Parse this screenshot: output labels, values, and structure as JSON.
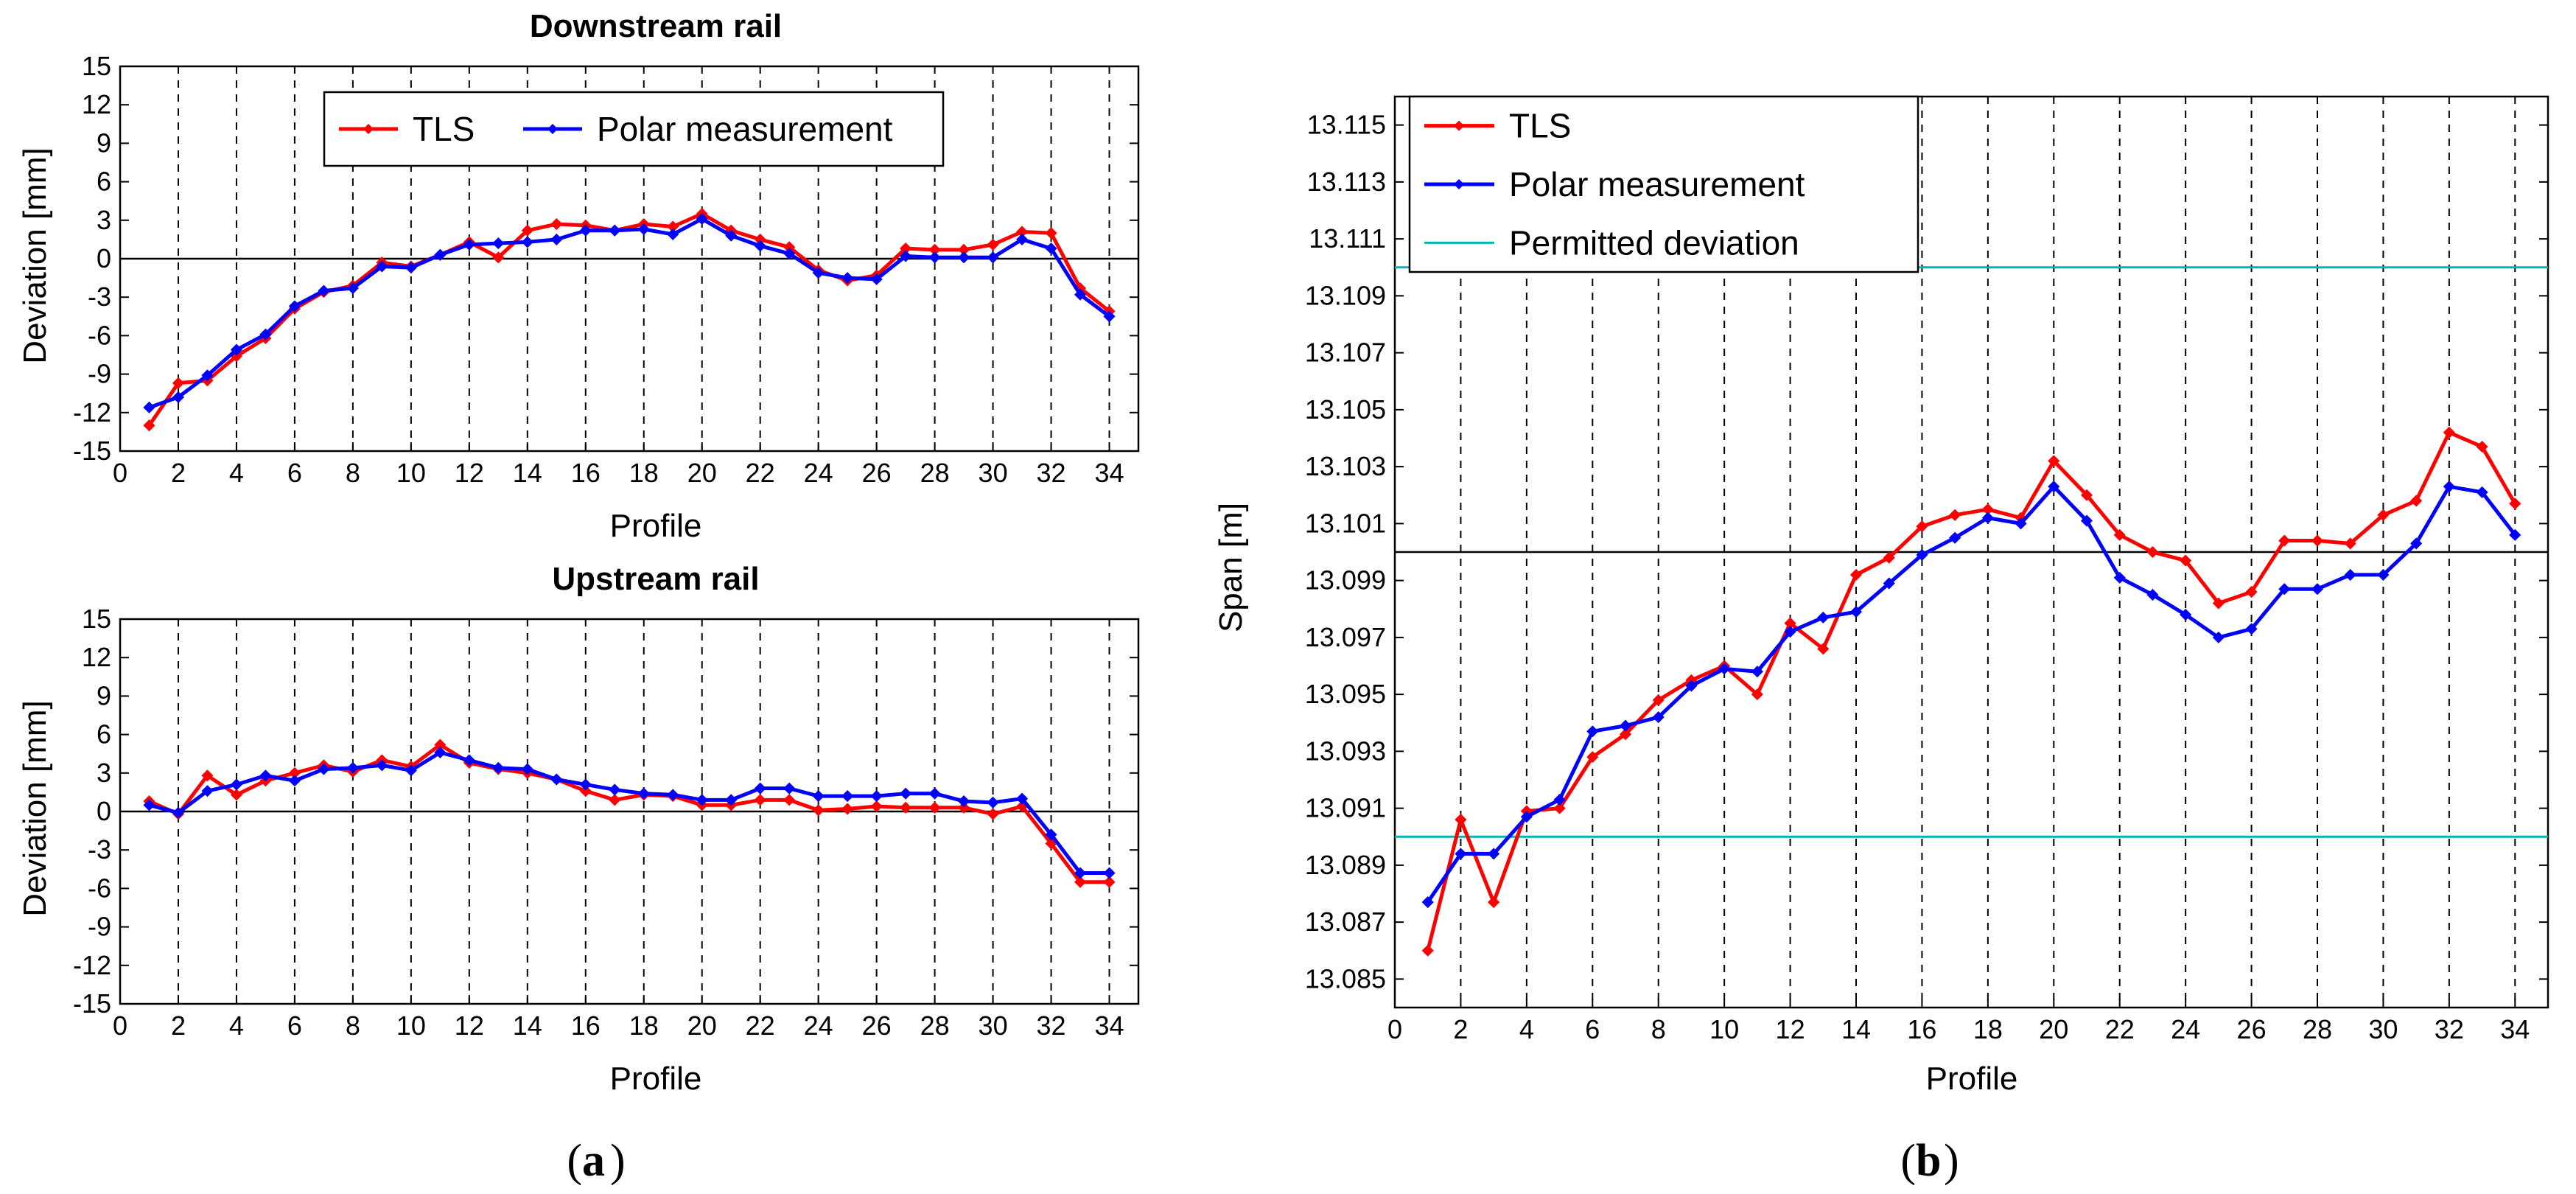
{
  "colors": {
    "tls": "#ff0000",
    "polar": "#0000ff",
    "permitted": "#00b5b5",
    "zero": "#000000",
    "grid": "#000000"
  },
  "panel_labels": {
    "a": "a",
    "b": "b"
  },
  "chart_data": [
    {
      "type": "line",
      "id": "downstream",
      "title": "Downstream rail",
      "xlabel": "Profile",
      "ylabel": "Deviation [mm]",
      "xlim": [
        0,
        35
      ],
      "ylim": [
        -15,
        15
      ],
      "xticks": [
        0,
        2,
        4,
        6,
        8,
        10,
        12,
        14,
        16,
        18,
        20,
        22,
        24,
        26,
        28,
        30,
        32,
        34
      ],
      "yticks": [
        -15,
        -12,
        -9,
        -6,
        -3,
        0,
        3,
        6,
        9,
        12,
        15
      ],
      "legend": [
        "TLS",
        "Polar measurement"
      ],
      "series": [
        {
          "name": "TLS",
          "color": "#ff0000",
          "x": [
            1,
            2,
            3,
            4,
            5,
            6,
            7,
            8,
            9,
            10,
            11,
            12,
            13,
            14,
            15,
            16,
            17,
            18,
            19,
            20,
            21,
            22,
            23,
            24,
            25,
            26,
            27,
            28,
            29,
            30,
            31,
            32,
            33,
            34
          ],
          "y": [
            -13,
            -9.7,
            -9.5,
            -7.6,
            -6.2,
            -3.9,
            -2.6,
            -2.1,
            -0.3,
            -0.6,
            0.3,
            1.3,
            0.1,
            2.2,
            2.7,
            2.6,
            2.2,
            2.7,
            2.5,
            3.5,
            2.2,
            1.5,
            0.9,
            -0.9,
            -1.7,
            -1.3,
            0.8,
            0.7,
            0.7,
            1.1,
            2.1,
            2.0,
            -2.3,
            -4.1
          ]
        },
        {
          "name": "Polar measurement",
          "color": "#0000ff",
          "x": [
            1,
            2,
            3,
            4,
            5,
            6,
            7,
            8,
            9,
            10,
            11,
            12,
            13,
            14,
            15,
            16,
            17,
            18,
            19,
            20,
            21,
            22,
            23,
            24,
            25,
            26,
            27,
            28,
            29,
            30,
            31,
            32,
            33,
            34
          ],
          "y": [
            -11.6,
            -10.8,
            -9.1,
            -7.1,
            -5.9,
            -3.7,
            -2.5,
            -2.3,
            -0.6,
            -0.7,
            0.3,
            1.1,
            1.2,
            1.3,
            1.5,
            2.2,
            2.2,
            2.3,
            1.9,
            3.1,
            1.8,
            1.0,
            0.4,
            -1.1,
            -1.5,
            -1.6,
            0.2,
            0.1,
            0.1,
            0.1,
            1.5,
            0.8,
            -2.8,
            -4.5
          ]
        }
      ]
    },
    {
      "type": "line",
      "id": "upstream",
      "title": "Upstream rail",
      "xlabel": "Profile",
      "ylabel": "Deviation [mm]",
      "xlim": [
        0,
        35
      ],
      "ylim": [
        -15,
        15
      ],
      "xticks": [
        0,
        2,
        4,
        6,
        8,
        10,
        12,
        14,
        16,
        18,
        20,
        22,
        24,
        26,
        28,
        30,
        32,
        34
      ],
      "yticks": [
        -15,
        -12,
        -9,
        -6,
        -3,
        0,
        3,
        6,
        9,
        12,
        15
      ],
      "series": [
        {
          "name": "TLS",
          "color": "#ff0000",
          "x": [
            1,
            2,
            3,
            4,
            5,
            6,
            7,
            8,
            9,
            10,
            11,
            12,
            13,
            14,
            15,
            16,
            17,
            18,
            19,
            20,
            21,
            22,
            23,
            24,
            25,
            26,
            27,
            28,
            29,
            30,
            31,
            32,
            33,
            34
          ],
          "y": [
            0.8,
            -0.2,
            2.8,
            1.3,
            2.4,
            3.0,
            3.6,
            3.1,
            4.0,
            3.5,
            5.2,
            3.8,
            3.3,
            3.0,
            2.5,
            1.6,
            0.9,
            1.3,
            1.2,
            0.5,
            0.5,
            0.9,
            0.9,
            0.1,
            0.2,
            0.4,
            0.3,
            0.3,
            0.3,
            -0.2,
            0.4,
            -2.5,
            -5.5,
            -5.5
          ]
        },
        {
          "name": "Polar measurement",
          "color": "#0000ff",
          "x": [
            1,
            2,
            3,
            4,
            5,
            6,
            7,
            8,
            9,
            10,
            11,
            12,
            13,
            14,
            15,
            16,
            17,
            18,
            19,
            20,
            21,
            22,
            23,
            24,
            25,
            26,
            27,
            28,
            29,
            30,
            31,
            32,
            33,
            34
          ],
          "y": [
            0.5,
            -0.1,
            1.6,
            2.1,
            2.8,
            2.4,
            3.3,
            3.4,
            3.6,
            3.2,
            4.6,
            4.0,
            3.4,
            3.3,
            2.5,
            2.1,
            1.7,
            1.4,
            1.3,
            0.9,
            0.9,
            1.8,
            1.8,
            1.2,
            1.2,
            1.2,
            1.4,
            1.4,
            0.8,
            0.7,
            1.0,
            -1.8,
            -4.8,
            -4.8
          ]
        }
      ]
    },
    {
      "type": "line",
      "id": "span",
      "title": "",
      "xlabel": "Profile",
      "ylabel": "Span [m]",
      "xlim": [
        0,
        35
      ],
      "ylim": [
        13.084,
        13.116
      ],
      "xticks": [
        0,
        2,
        4,
        6,
        8,
        10,
        12,
        14,
        16,
        18,
        20,
        22,
        24,
        26,
        28,
        30,
        32,
        34
      ],
      "yticks": [
        13.085,
        13.087,
        13.089,
        13.091,
        13.093,
        13.095,
        13.097,
        13.099,
        13.101,
        13.103,
        13.105,
        13.107,
        13.109,
        13.111,
        13.113,
        13.115
      ],
      "ytick_labels": [
        "13.085",
        "13.087",
        "13.089",
        "13.091",
        "13.093",
        "13.095",
        "13.097",
        "13.099",
        "13.101",
        "13.103",
        "13.105",
        "13.107",
        "13.109",
        "13.111",
        "13.113",
        "13.115"
      ],
      "reference_line": 13.1,
      "permitted_deviation": [
        13.09,
        13.11
      ],
      "legend": [
        "TLS",
        "Polar measurement",
        "Permitted deviation"
      ],
      "series": [
        {
          "name": "TLS",
          "color": "#ff0000",
          "x": [
            1,
            2,
            3,
            4,
            5,
            6,
            7,
            8,
            9,
            10,
            11,
            12,
            13,
            14,
            15,
            16,
            17,
            18,
            19,
            20,
            21,
            22,
            23,
            24,
            25,
            26,
            27,
            28,
            29,
            30,
            31,
            32,
            33,
            34
          ],
          "y": [
            13.086,
            13.0906,
            13.0877,
            13.0909,
            13.091,
            13.0928,
            13.0936,
            13.0948,
            13.0955,
            13.096,
            13.095,
            13.0975,
            13.0966,
            13.0992,
            13.0998,
            13.1009,
            13.1013,
            13.1015,
            13.1012,
            13.1032,
            13.102,
            13.1006,
            13.1,
            13.0997,
            13.0982,
            13.0986,
            13.1004,
            13.1004,
            13.1003,
            13.1013,
            13.1018,
            13.1042,
            13.1037,
            13.1017
          ]
        },
        {
          "name": "Polar measurement",
          "color": "#0000ff",
          "x": [
            1,
            2,
            3,
            4,
            5,
            6,
            7,
            8,
            9,
            10,
            11,
            12,
            13,
            14,
            15,
            16,
            17,
            18,
            19,
            20,
            21,
            22,
            23,
            24,
            25,
            26,
            27,
            28,
            29,
            30,
            31,
            32,
            33,
            34
          ],
          "y": [
            13.0877,
            13.0894,
            13.0894,
            13.0907,
            13.0913,
            13.0937,
            13.0939,
            13.0942,
            13.0953,
            13.0959,
            13.0958,
            13.0972,
            13.0977,
            13.0979,
            13.0989,
            13.0999,
            13.1005,
            13.1012,
            13.101,
            13.1023,
            13.1011,
            13.0991,
            13.0985,
            13.0978,
            13.097,
            13.0973,
            13.0987,
            13.0987,
            13.0992,
            13.0992,
            13.1003,
            13.1023,
            13.1021,
            13.1006
          ]
        }
      ]
    }
  ]
}
